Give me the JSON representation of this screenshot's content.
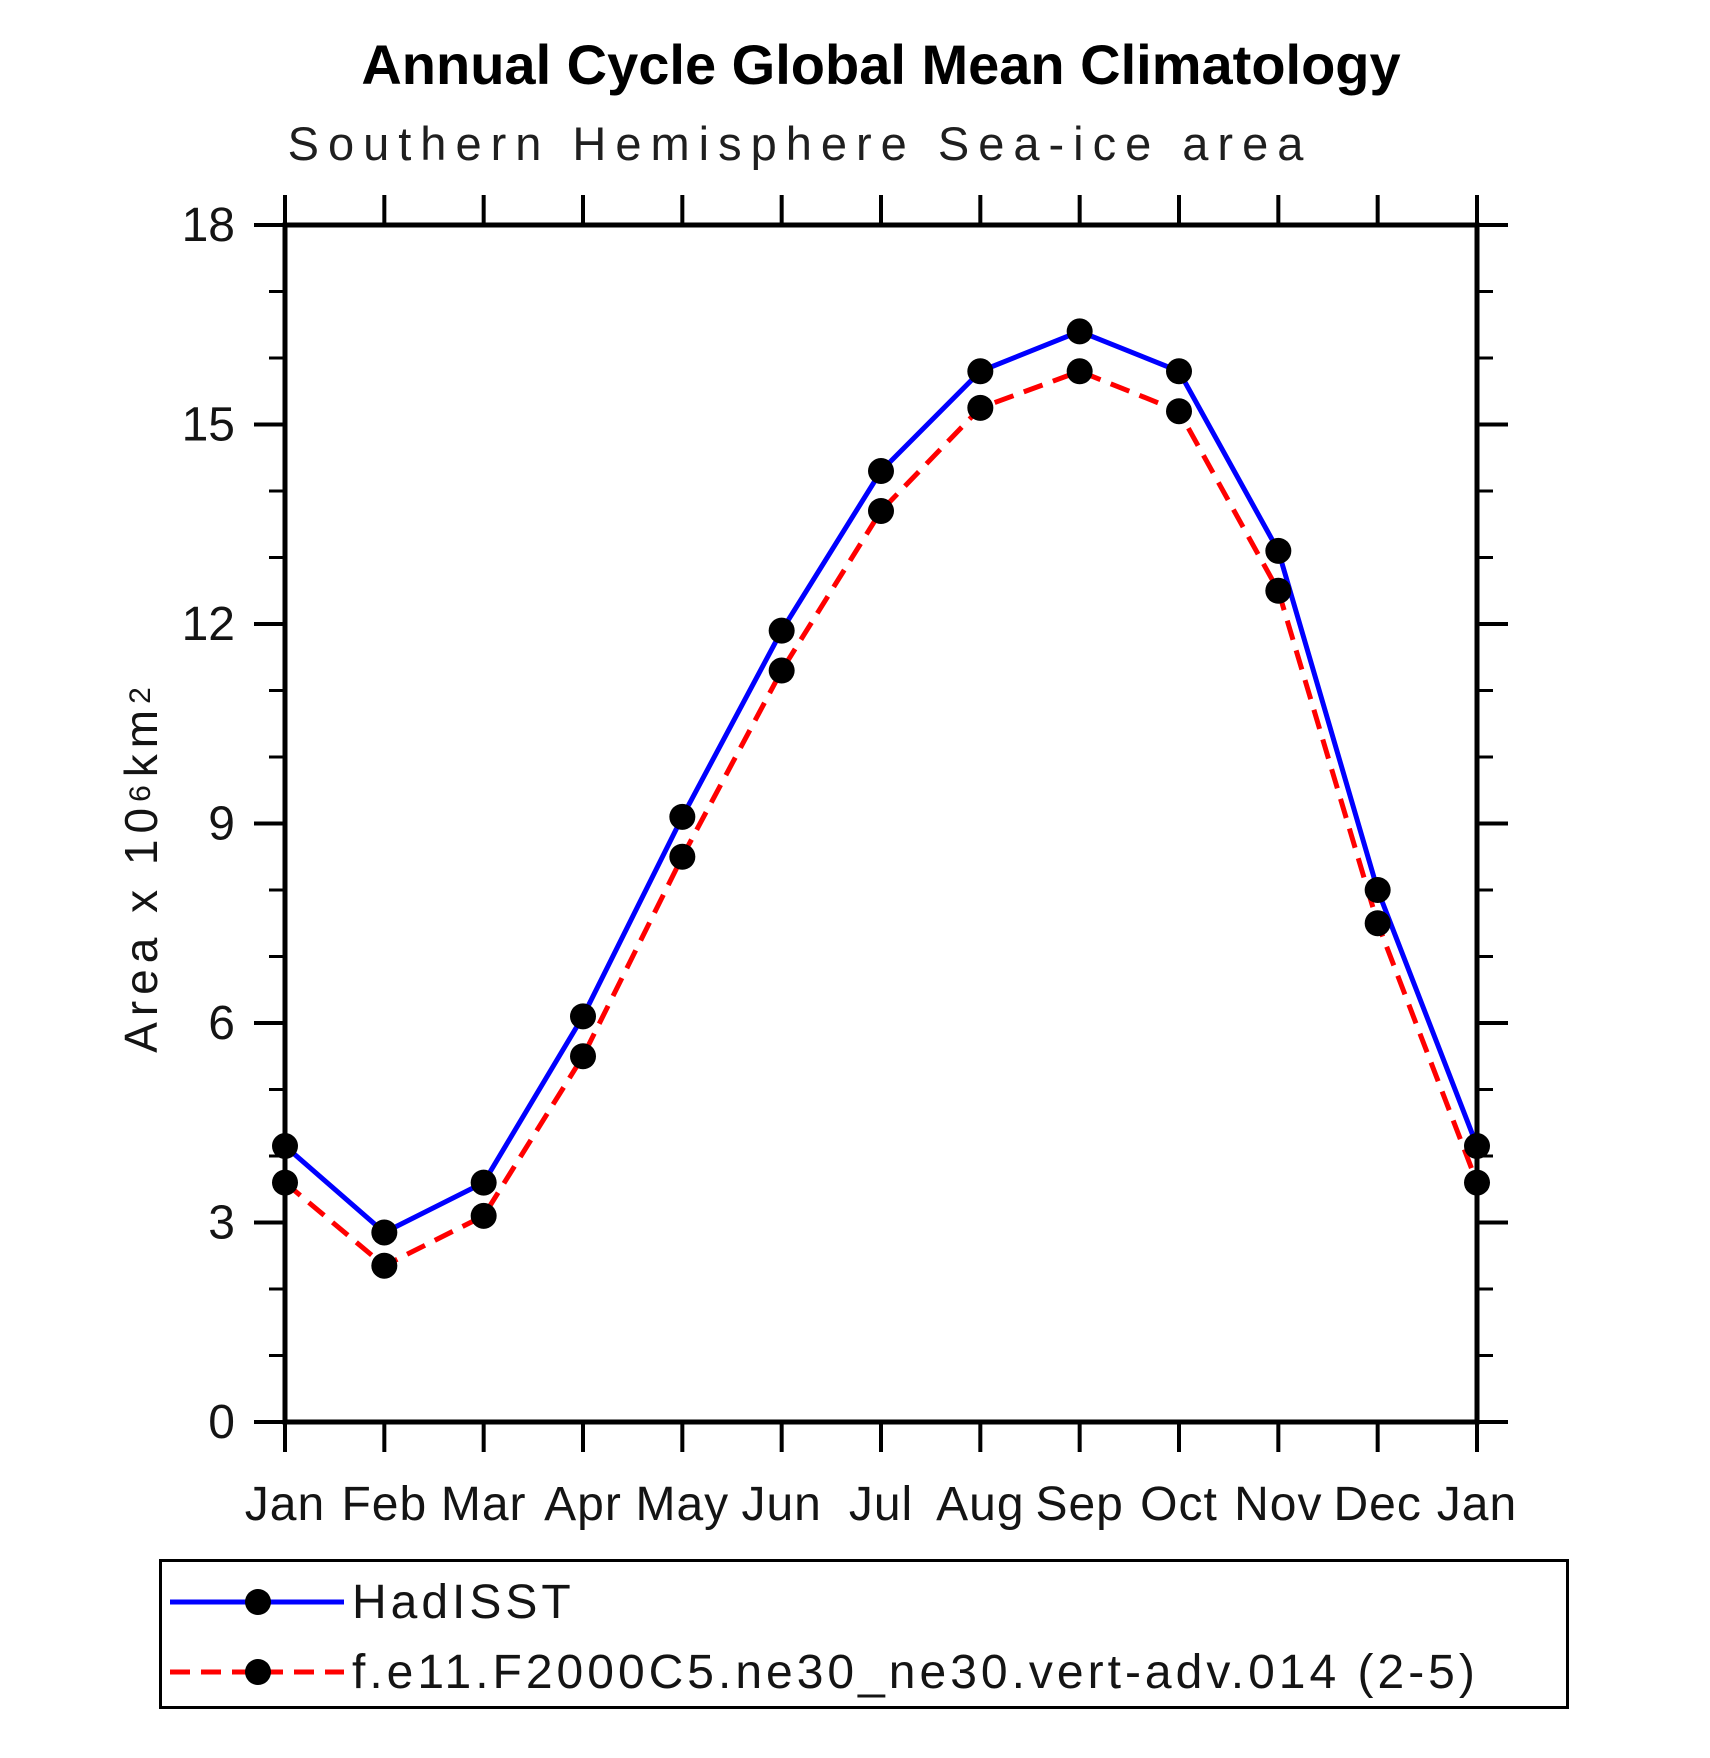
{
  "chart_data": {
    "type": "line",
    "title": "Annual Cycle Global Mean Climatology",
    "subtitle": "Southern Hemisphere Sea-ice area",
    "ylabel": {
      "text": "Area x 10⁶ km²",
      "prefix": "Area x 10",
      "sup1": "6",
      "mid": " km",
      "sup2": "2"
    },
    "categories": [
      "Jan",
      "Feb",
      "Mar",
      "Apr",
      "May",
      "Jun",
      "Jul",
      "Aug",
      "Sep",
      "Oct",
      "Nov",
      "Dec",
      "Jan"
    ],
    "ylim": [
      0,
      18
    ],
    "yticks_major": [
      0,
      3,
      6,
      9,
      12,
      15,
      18
    ],
    "ytick_labels": [
      "0",
      "3",
      "6",
      "9",
      "12",
      "15",
      "18"
    ],
    "yticks_minor_step": 1,
    "grid": "off",
    "legend_position": "bottom-box",
    "marker_color": "#000000",
    "axis_color": "#000000",
    "series": [
      {
        "name": "HadISST",
        "color": "#0000ff",
        "style": "solid",
        "values": [
          4.15,
          2.85,
          3.6,
          6.1,
          9.1,
          11.9,
          14.3,
          15.8,
          16.4,
          15.8,
          13.1,
          8.0,
          4.15
        ]
      },
      {
        "name": "f.e11.F2000C5.ne30_ne30.vert-adv.014 (2-5)",
        "color": "#ff0000",
        "style": "dashed",
        "values": [
          3.6,
          2.35,
          3.1,
          5.5,
          8.5,
          11.3,
          13.7,
          15.25,
          15.8,
          15.2,
          12.5,
          7.5,
          3.6
        ]
      }
    ]
  }
}
